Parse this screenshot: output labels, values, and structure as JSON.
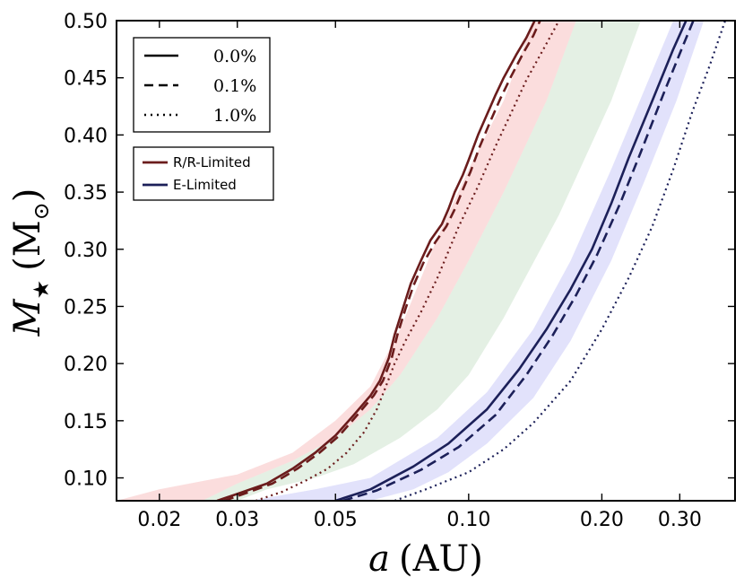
{
  "chart_data": {
    "type": "line",
    "xscale": "log",
    "xlim": [
      0.016,
      0.4
    ],
    "ylim": [
      0.08,
      0.5
    ],
    "xlabel_symbol": "a",
    "xlabel_unit": "(AU)",
    "ylabel_symbol": "M",
    "ylabel_subscript": "★",
    "ylabel_unit": "(M",
    "ylabel_unit_subscript": "⊙",
    "ylabel_close": ")",
    "xticks": [
      {
        "value": 0.02,
        "label": "0.02"
      },
      {
        "value": 0.03,
        "label": "0.03"
      },
      {
        "value": 0.05,
        "label": "0.05"
      },
      {
        "value": 0.1,
        "label": "0.10"
      },
      {
        "value": 0.2,
        "label": "0.20"
      },
      {
        "value": 0.3,
        "label": "0.30"
      }
    ],
    "yticks": [
      {
        "value": 0.1,
        "label": "0.10"
      },
      {
        "value": 0.15,
        "label": "0.15"
      },
      {
        "value": 0.2,
        "label": "0.20"
      },
      {
        "value": 0.25,
        "label": "0.25"
      },
      {
        "value": 0.3,
        "label": "0.30"
      },
      {
        "value": 0.35,
        "label": "0.35"
      },
      {
        "value": 0.4,
        "label": "0.40"
      },
      {
        "value": 0.45,
        "label": "0.45"
      },
      {
        "value": 0.5,
        "label": "0.50"
      }
    ],
    "colors": {
      "rr": "#6b1c1c",
      "elim": "#1c2059",
      "band_red": "#f4a6a6",
      "band_green": "#b9d8b9",
      "band_blue": "#b4b4f4"
    },
    "legend_styles": [
      {
        "label": "0.0%",
        "dash": "solid"
      },
      {
        "label": "0.1%",
        "dash": "dashed"
      },
      {
        "label": "1.0%",
        "dash": "dotted"
      }
    ],
    "legend_models": [
      {
        "label": "R/R-Limited",
        "color_key": "rr"
      },
      {
        "label": "E-Limited",
        "color_key": "elim"
      }
    ],
    "bands": [
      {
        "name": "red",
        "color_key": "band_red",
        "upper": [
          [
            0.016,
            0.08
          ],
          [
            0.02,
            0.09
          ],
          [
            0.03,
            0.103
          ],
          [
            0.04,
            0.122
          ],
          [
            0.05,
            0.15
          ],
          [
            0.06,
            0.18
          ],
          [
            0.07,
            0.23
          ],
          [
            0.085,
            0.31
          ],
          [
            0.1,
            0.37
          ],
          [
            0.12,
            0.43
          ],
          [
            0.14,
            0.5
          ]
        ],
        "lower": [
          [
            0.175,
            0.5
          ],
          [
            0.15,
            0.43
          ],
          [
            0.12,
            0.35
          ],
          [
            0.1,
            0.29
          ],
          [
            0.085,
            0.24
          ],
          [
            0.07,
            0.19
          ],
          [
            0.06,
            0.16
          ],
          [
            0.05,
            0.135
          ],
          [
            0.04,
            0.115
          ],
          [
            0.03,
            0.095
          ],
          [
            0.025,
            0.08
          ]
        ]
      },
      {
        "name": "green",
        "color_key": "band_green",
        "upper": [
          [
            0.025,
            0.08
          ],
          [
            0.03,
            0.095
          ],
          [
            0.04,
            0.115
          ],
          [
            0.05,
            0.135
          ],
          [
            0.06,
            0.16
          ],
          [
            0.07,
            0.19
          ],
          [
            0.085,
            0.24
          ],
          [
            0.1,
            0.29
          ],
          [
            0.12,
            0.35
          ],
          [
            0.15,
            0.43
          ],
          [
            0.175,
            0.5
          ]
        ],
        "lower": [
          [
            0.245,
            0.5
          ],
          [
            0.21,
            0.43
          ],
          [
            0.16,
            0.33
          ],
          [
            0.12,
            0.24
          ],
          [
            0.1,
            0.19
          ],
          [
            0.085,
            0.16
          ],
          [
            0.07,
            0.135
          ],
          [
            0.055,
            0.112
          ],
          [
            0.045,
            0.1
          ],
          [
            0.035,
            0.09
          ],
          [
            0.03,
            0.08
          ]
        ]
      },
      {
        "name": "blue",
        "color_key": "band_blue",
        "upper": [
          [
            0.032,
            0.08
          ],
          [
            0.045,
            0.09
          ],
          [
            0.06,
            0.1
          ],
          [
            0.085,
            0.135
          ],
          [
            0.11,
            0.175
          ],
          [
            0.14,
            0.23
          ],
          [
            0.17,
            0.29
          ],
          [
            0.21,
            0.37
          ],
          [
            0.25,
            0.44
          ],
          [
            0.29,
            0.5
          ]
        ],
        "lower": [
          [
            0.34,
            0.5
          ],
          [
            0.295,
            0.43
          ],
          [
            0.25,
            0.36
          ],
          [
            0.21,
            0.29
          ],
          [
            0.17,
            0.22
          ],
          [
            0.14,
            0.17
          ],
          [
            0.11,
            0.13
          ],
          [
            0.09,
            0.105
          ],
          [
            0.075,
            0.09
          ],
          [
            0.06,
            0.08
          ]
        ]
      }
    ],
    "series": [
      {
        "name": "R/R-Limited 0.0%",
        "color_key": "rr",
        "dash": "solid",
        "points": [
          [
            0.027,
            0.08
          ],
          [
            0.03,
            0.086
          ],
          [
            0.035,
            0.095
          ],
          [
            0.04,
            0.108
          ],
          [
            0.045,
            0.122
          ],
          [
            0.05,
            0.137
          ],
          [
            0.055,
            0.155
          ],
          [
            0.06,
            0.172
          ],
          [
            0.063,
            0.185
          ],
          [
            0.066,
            0.205
          ],
          [
            0.068,
            0.225
          ],
          [
            0.071,
            0.248
          ],
          [
            0.074,
            0.27
          ],
          [
            0.078,
            0.29
          ],
          [
            0.082,
            0.308
          ],
          [
            0.087,
            0.322
          ],
          [
            0.09,
            0.335
          ],
          [
            0.093,
            0.35
          ],
          [
            0.097,
            0.365
          ],
          [
            0.1,
            0.378
          ],
          [
            0.105,
            0.4
          ],
          [
            0.11,
            0.418
          ],
          [
            0.115,
            0.435
          ],
          [
            0.12,
            0.45
          ],
          [
            0.128,
            0.47
          ],
          [
            0.135,
            0.485
          ],
          [
            0.141,
            0.5
          ]
        ]
      },
      {
        "name": "R/R-Limited 0.1%",
        "color_key": "rr",
        "dash": "dashed",
        "points": [
          [
            0.028,
            0.08
          ],
          [
            0.031,
            0.086
          ],
          [
            0.036,
            0.095
          ],
          [
            0.041,
            0.108
          ],
          [
            0.046,
            0.122
          ],
          [
            0.051,
            0.137
          ],
          [
            0.056,
            0.155
          ],
          [
            0.061,
            0.172
          ],
          [
            0.064,
            0.185
          ],
          [
            0.067,
            0.205
          ],
          [
            0.069,
            0.225
          ],
          [
            0.072,
            0.248
          ],
          [
            0.075,
            0.268
          ],
          [
            0.079,
            0.288
          ],
          [
            0.084,
            0.306
          ],
          [
            0.089,
            0.32
          ],
          [
            0.093,
            0.335
          ],
          [
            0.097,
            0.352
          ],
          [
            0.101,
            0.368
          ],
          [
            0.106,
            0.39
          ],
          [
            0.112,
            0.412
          ],
          [
            0.118,
            0.432
          ],
          [
            0.125,
            0.452
          ],
          [
            0.133,
            0.472
          ],
          [
            0.14,
            0.487
          ],
          [
            0.145,
            0.5
          ]
        ]
      },
      {
        "name": "R/R-Limited 1.0%",
        "color_key": "rr",
        "dash": "dotted",
        "points": [
          [
            0.033,
            0.08
          ],
          [
            0.038,
            0.088
          ],
          [
            0.043,
            0.098
          ],
          [
            0.048,
            0.108
          ],
          [
            0.053,
            0.122
          ],
          [
            0.058,
            0.14
          ],
          [
            0.062,
            0.16
          ],
          [
            0.065,
            0.18
          ],
          [
            0.068,
            0.2
          ],
          [
            0.072,
            0.22
          ],
          [
            0.078,
            0.245
          ],
          [
            0.085,
            0.275
          ],
          [
            0.095,
            0.32
          ],
          [
            0.105,
            0.355
          ],
          [
            0.115,
            0.39
          ],
          [
            0.125,
            0.42
          ],
          [
            0.135,
            0.448
          ],
          [
            0.15,
            0.48
          ],
          [
            0.16,
            0.5
          ]
        ]
      },
      {
        "name": "E-Limited 0.0%",
        "color_key": "elim",
        "dash": "solid",
        "points": [
          [
            0.05,
            0.08
          ],
          [
            0.06,
            0.09
          ],
          [
            0.075,
            0.11
          ],
          [
            0.09,
            0.13
          ],
          [
            0.11,
            0.16
          ],
          [
            0.13,
            0.195
          ],
          [
            0.15,
            0.23
          ],
          [
            0.17,
            0.265
          ],
          [
            0.19,
            0.3
          ],
          [
            0.21,
            0.34
          ],
          [
            0.23,
            0.38
          ],
          [
            0.26,
            0.43
          ],
          [
            0.29,
            0.475
          ],
          [
            0.31,
            0.5
          ]
        ]
      },
      {
        "name": "E-Limited 0.1%",
        "color_key": "elim",
        "dash": "dashed",
        "points": [
          [
            0.052,
            0.08
          ],
          [
            0.062,
            0.089
          ],
          [
            0.078,
            0.107
          ],
          [
            0.095,
            0.127
          ],
          [
            0.115,
            0.155
          ],
          [
            0.135,
            0.19
          ],
          [
            0.155,
            0.225
          ],
          [
            0.175,
            0.26
          ],
          [
            0.195,
            0.295
          ],
          [
            0.22,
            0.34
          ],
          [
            0.245,
            0.385
          ],
          [
            0.275,
            0.435
          ],
          [
            0.305,
            0.478
          ],
          [
            0.322,
            0.5
          ]
        ]
      },
      {
        "name": "E-Limited 1.0%",
        "color_key": "elim",
        "dash": "dotted",
        "points": [
          [
            0.068,
            0.08
          ],
          [
            0.08,
            0.09
          ],
          [
            0.1,
            0.105
          ],
          [
            0.12,
            0.125
          ],
          [
            0.14,
            0.148
          ],
          [
            0.17,
            0.185
          ],
          [
            0.2,
            0.23
          ],
          [
            0.23,
            0.275
          ],
          [
            0.26,
            0.32
          ],
          [
            0.29,
            0.37
          ],
          [
            0.32,
            0.42
          ],
          [
            0.35,
            0.46
          ],
          [
            0.38,
            0.5
          ]
        ]
      }
    ]
  }
}
